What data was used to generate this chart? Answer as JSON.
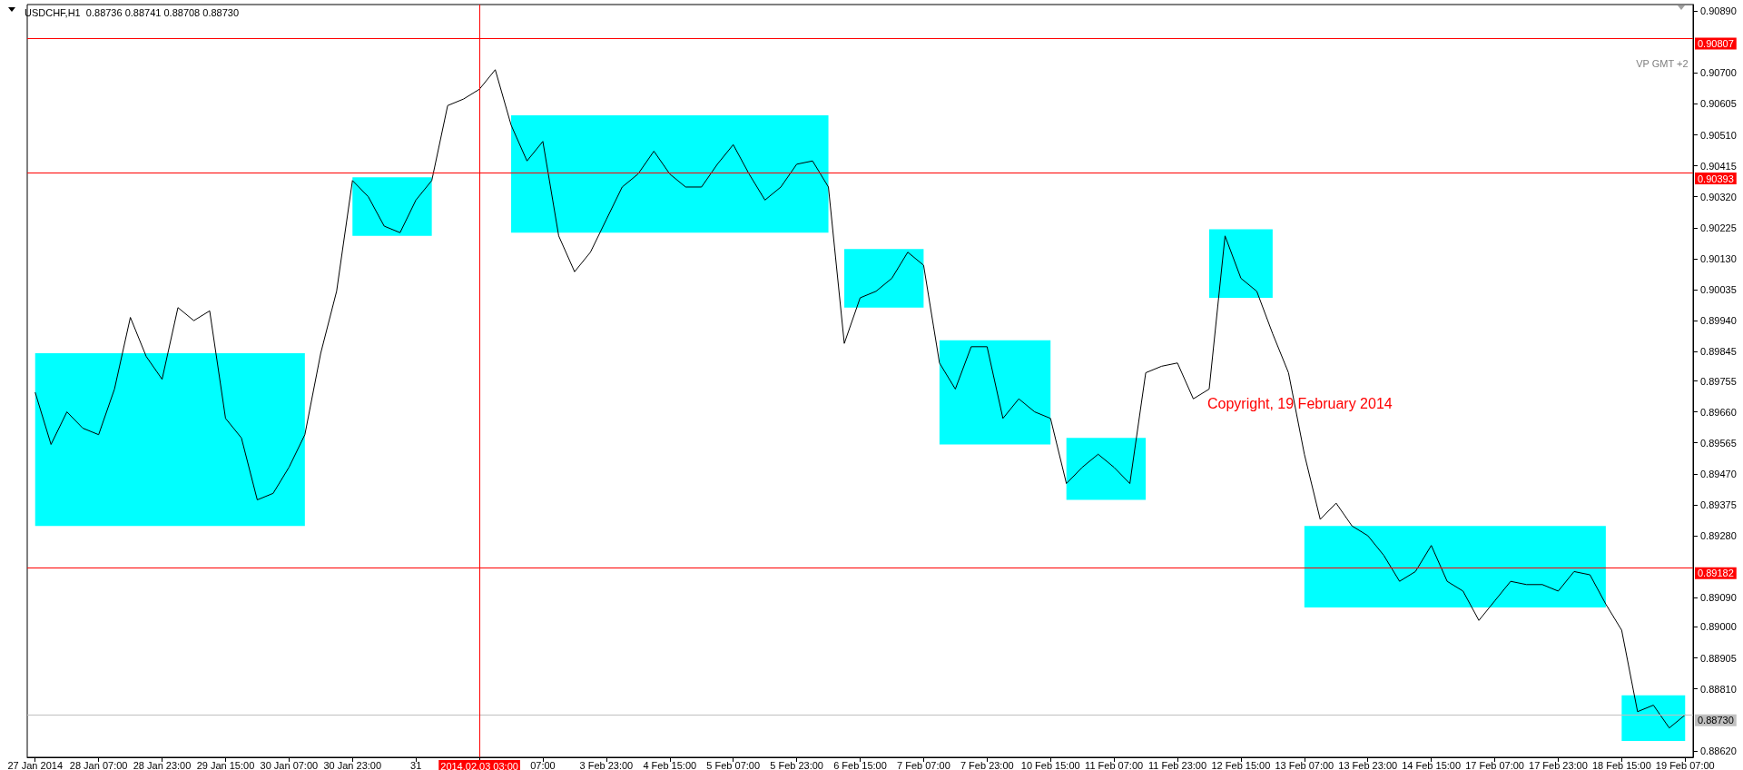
{
  "chart_data": {
    "type": "line",
    "title": "USDCHF,H1  0.88736 0.88741 0.88708 0.88730",
    "annotations": [
      "VP GMT +2",
      "Copyright, 19 February 2014"
    ],
    "categories": [
      "27 Jan 2014",
      null,
      null,
      null,
      "28 Jan 07:00",
      null,
      null,
      null,
      "28 Jan 23:00",
      null,
      null,
      null,
      "29 Jan 15:00",
      null,
      null,
      null,
      "30 Jan 07:00",
      null,
      null,
      null,
      "30 Jan 23:00",
      null,
      null,
      null,
      "31",
      null,
      null,
      null,
      "2014.02.03 03:00",
      null,
      null,
      null,
      "07:00",
      null,
      null,
      null,
      "3 Feb 23:00",
      null,
      null,
      null,
      "4 Feb 15:00",
      null,
      null,
      null,
      "5 Feb 07:00",
      null,
      null,
      null,
      "5 Feb 23:00",
      null,
      null,
      null,
      "6 Feb 15:00",
      null,
      null,
      null,
      "7 Feb 07:00",
      null,
      null,
      null,
      "7 Feb 23:00",
      null,
      null,
      null,
      "10 Feb 15:00",
      null,
      null,
      null,
      "11 Feb 07:00",
      null,
      null,
      null,
      "11 Feb 23:00",
      null,
      null,
      null,
      "12 Feb 15:00",
      null,
      null,
      null,
      "13 Feb 07:00",
      null,
      null,
      null,
      "13 Feb 23:00",
      null,
      null,
      null,
      "14 Feb 15:00",
      null,
      null,
      null,
      "17 Feb 07:00",
      null,
      null,
      null,
      "17 Feb 23:00",
      null,
      null,
      null,
      "18 Feb 15:00",
      null,
      null,
      null,
      "19 Feb 07:00"
    ],
    "series": [
      {
        "type": "area",
        "color": "#00ffff",
        "values": [
          null,
          null,
          null,
          null,
          null,
          null,
          null,
          null,
          null,
          null,
          null,
          null,
          null,
          null,
          null,
          null,
          null,
          null,
          null,
          null,
          null,
          null,
          null,
          null,
          null,
          null,
          null,
          null,
          null,
          null,
          null,
          null,
          null,
          null,
          null,
          null,
          null,
          null,
          null,
          null,
          null,
          null,
          null,
          null,
          null,
          null,
          null,
          null,
          null,
          null,
          null,
          null,
          null,
          null,
          null,
          null,
          null,
          null,
          null,
          null,
          null,
          null,
          null,
          null,
          null,
          null,
          null,
          null,
          null,
          null,
          null,
          null,
          null,
          null,
          null,
          null,
          null,
          null,
          null,
          null,
          null,
          null,
          null,
          null,
          null,
          null,
          null,
          null,
          null,
          null,
          null,
          null,
          null,
          null,
          null,
          null,
          null,
          null,
          null,
          null,
          null,
          null,
          null,
          null,
          null
        ],
        "upper": [
          0.8984,
          0.8984,
          0.8984,
          0.8984,
          0.8984,
          0.8984,
          0.8984,
          0.8984,
          0.8984,
          0.8984,
          0.8984,
          0.8984,
          0.8984,
          0.8984,
          0.8984,
          0.8984,
          0.8984,
          0.8984,
          null,
          null,
          0.9038,
          0.9038,
          0.9038,
          0.9038,
          0.9038,
          0.9038,
          null,
          null,
          null,
          null,
          0.9057,
          0.9057,
          0.9057,
          0.9057,
          0.9057,
          0.9057,
          0.9057,
          0.9057,
          0.9057,
          0.9057,
          0.9057,
          0.9057,
          0.9057,
          0.9057,
          0.9057,
          0.9057,
          0.9057,
          0.9057,
          0.9057,
          0.9057,
          0.9057,
          0.9016,
          0.9016,
          0.9016,
          0.9016,
          0.9016,
          0.9016,
          0.8988,
          0.8988,
          0.8988,
          0.8988,
          0.8988,
          0.8988,
          0.8988,
          0.8988,
          0.8958,
          0.8958,
          0.8958,
          0.8958,
          0.8958,
          0.8958,
          null,
          null,
          null,
          0.9022,
          0.9022,
          0.9022,
          0.9022,
          0.9022,
          null,
          0.8931,
          0.8931,
          0.8931,
          0.8931,
          0.8931,
          0.8931,
          0.8931,
          0.8931,
          0.8931,
          0.8931,
          0.8931,
          0.8931,
          0.8931,
          0.8931,
          0.8931,
          0.8931,
          0.8931,
          0.8931,
          0.8931,
          0.8931,
          0.8879,
          0.8879,
          0.8879,
          0.8879,
          0.8879
        ],
        "lower": [
          0.8931,
          0.8931,
          0.8931,
          0.8931,
          0.8931,
          0.8931,
          0.8931,
          0.8931,
          0.8931,
          0.8931,
          0.8931,
          0.8931,
          0.8931,
          0.8931,
          0.8931,
          0.8931,
          0.8931,
          0.8931,
          null,
          null,
          0.902,
          0.902,
          0.902,
          0.902,
          0.902,
          0.902,
          null,
          null,
          null,
          null,
          0.9021,
          0.9021,
          0.9021,
          0.9021,
          0.9021,
          0.9021,
          0.9021,
          0.9021,
          0.9021,
          0.9021,
          0.9021,
          0.9021,
          0.9021,
          0.9021,
          0.9021,
          0.9021,
          0.9021,
          0.9021,
          0.9021,
          0.9021,
          0.9021,
          0.8998,
          0.8998,
          0.8998,
          0.8998,
          0.8998,
          0.8998,
          0.8956,
          0.8956,
          0.8956,
          0.8956,
          0.8956,
          0.8956,
          0.8956,
          0.8956,
          0.8939,
          0.8939,
          0.8939,
          0.8939,
          0.8939,
          0.8939,
          null,
          null,
          null,
          0.9001,
          0.9001,
          0.9001,
          0.9001,
          0.9001,
          null,
          0.8906,
          0.8906,
          0.8906,
          0.8906,
          0.8906,
          0.8906,
          0.8906,
          0.8906,
          0.8906,
          0.8906,
          0.8906,
          0.8906,
          0.8906,
          0.8906,
          0.8906,
          0.8906,
          0.8906,
          0.8906,
          0.8906,
          0.8906,
          0.8865,
          0.8865,
          0.8865,
          0.8865,
          0.8865
        ]
      },
      {
        "color": "#000000",
        "values": [
          0.8972,
          0.8956,
          0.8966,
          0.8961,
          0.8959,
          0.8973,
          0.8995,
          0.8983,
          0.8976,
          0.8998,
          0.8994,
          0.8997,
          0.8964,
          0.8958,
          0.8939,
          0.8941,
          0.8949,
          0.8959,
          0.8984,
          0.9003,
          0.9037,
          0.9032,
          0.9023,
          0.9021,
          0.9031,
          0.9037,
          0.906,
          0.9062,
          0.9065,
          0.9071,
          0.9054,
          0.9043,
          0.9049,
          0.902,
          0.9009,
          0.9015,
          0.9025,
          0.9035,
          0.9039,
          0.9046,
          0.9039,
          0.9035,
          0.9035,
          0.9042,
          0.9048,
          0.9039,
          0.9031,
          0.9035,
          0.9042,
          0.9043,
          0.9035,
          0.8987,
          0.9001,
          0.9003,
          0.9007,
          0.9015,
          0.9011,
          0.8981,
          0.8973,
          0.8986,
          0.8986,
          0.8964,
          0.897,
          0.8966,
          0.8964,
          0.8944,
          0.8949,
          0.8953,
          0.8949,
          0.8944,
          0.8978,
          0.898,
          0.8981,
          0.897,
          0.8973,
          0.902,
          0.9007,
          0.9003,
          0.899,
          0.8978,
          0.8953,
          0.8933,
          0.8938,
          0.8931,
          0.8928,
          0.8922,
          0.8914,
          0.8917,
          0.8925,
          0.8914,
          0.8911,
          0.8902,
          0.8908,
          0.8914,
          0.8913,
          0.8913,
          0.8911,
          0.8917,
          0.8916,
          0.8907,
          0.8899,
          0.8874,
          0.8876,
          0.8869,
          0.8873
        ]
      }
    ],
    "ylim": [
      0.886,
      0.9091
    ],
    "yticks": [
      {
        "value": 0.9089,
        "label": "0.90890"
      },
      {
        "value": 0.907,
        "label": "0.90700"
      },
      {
        "value": 0.90605,
        "label": "0.90605"
      },
      {
        "value": 0.9051,
        "label": "0.90510"
      },
      {
        "value": 0.90415,
        "label": "0.90415"
      },
      {
        "value": 0.9032,
        "label": "0.90320"
      },
      {
        "value": 0.90225,
        "label": "0.90225"
      },
      {
        "value": 0.9013,
        "label": "0.90130"
      },
      {
        "value": 0.90035,
        "label": "0.90035"
      },
      {
        "value": 0.8994,
        "label": "0.89940"
      },
      {
        "value": 0.89845,
        "label": "0.89845"
      },
      {
        "value": 0.89755,
        "label": "0.89755"
      },
      {
        "value": 0.8966,
        "label": "0.89660"
      },
      {
        "value": 0.89565,
        "label": "0.89565"
      },
      {
        "value": 0.8947,
        "label": "0.89470"
      },
      {
        "value": 0.89375,
        "label": "0.89375"
      },
      {
        "value": 0.8928,
        "label": "0.89280"
      },
      {
        "value": 0.8909,
        "label": "0.89090"
      },
      {
        "value": 0.89,
        "label": "0.89000"
      },
      {
        "value": 0.88905,
        "label": "0.88905"
      },
      {
        "value": 0.8881,
        "label": "0.88810"
      },
      {
        "value": 0.8862,
        "label": "0.88620"
      }
    ],
    "ref_lines": [
      {
        "axis": "y",
        "value": 0.90807,
        "label": "0.90807",
        "color": "#ff0000"
      },
      {
        "axis": "y",
        "value": 0.90393,
        "label": "0.90393",
        "color": "#ff0000"
      },
      {
        "axis": "y",
        "value": 0.89182,
        "label": "0.89182",
        "color": "#ff0000"
      },
      {
        "axis": "y",
        "value": 0.8873,
        "label": "0.88730",
        "color": "#c0c0c0"
      },
      {
        "axis": "x",
        "value": "2014.02.03 03:00",
        "color": "#ff0000"
      }
    ]
  }
}
